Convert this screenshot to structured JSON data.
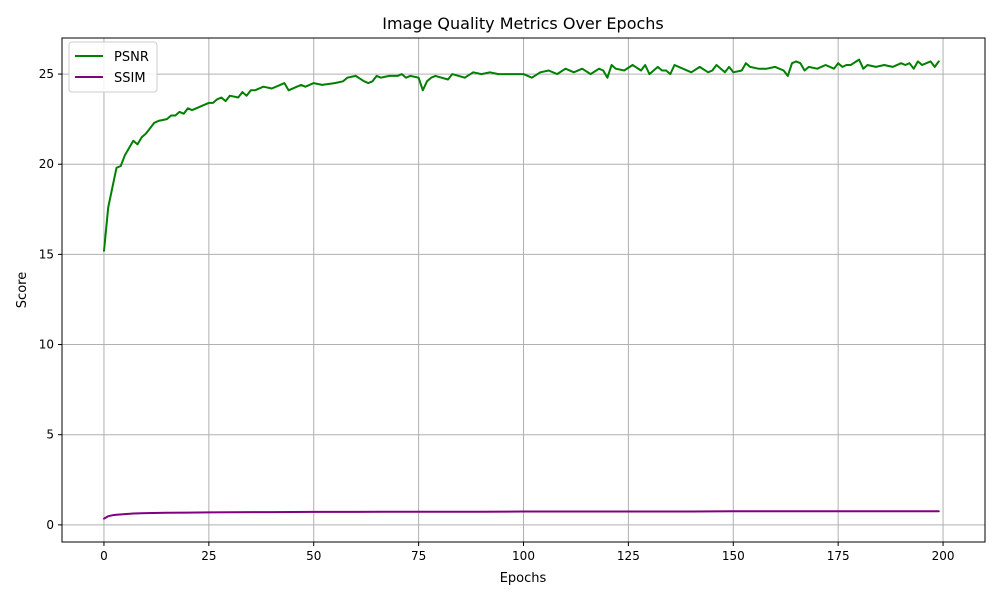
{
  "chart_data": {
    "type": "line",
    "title": "Image Quality Metrics Over Epochs",
    "xlabel": "Epochs",
    "ylabel": "Score",
    "xlim": [
      -10,
      210
    ],
    "ylim": [
      -0.95,
      27.0
    ],
    "xticks": [
      0,
      25,
      50,
      75,
      100,
      125,
      150,
      175,
      200
    ],
    "yticks": [
      0,
      5,
      10,
      15,
      20,
      25
    ],
    "grid": true,
    "legend_position": "top-left",
    "series": [
      {
        "name": "PSNR",
        "color": "#008000",
        "x": [
          0,
          1,
          3,
          4,
          5,
          6,
          7,
          8,
          9,
          10,
          12,
          13,
          15,
          16,
          17,
          18,
          19,
          20,
          21,
          22,
          24,
          25,
          26,
          27,
          28,
          29,
          30,
          32,
          33,
          34,
          35,
          36,
          38,
          40,
          42,
          43,
          44,
          46,
          47,
          48,
          49,
          50,
          52,
          55,
          57,
          58,
          60,
          62,
          63,
          64,
          65,
          66,
          68,
          70,
          71,
          72,
          73,
          75,
          76,
          77,
          78,
          79,
          82,
          83,
          86,
          88,
          90,
          92,
          94,
          96,
          100,
          102,
          104,
          106,
          108,
          110,
          112,
          114,
          116,
          118,
          119,
          120,
          121,
          122,
          124,
          126,
          128,
          129,
          130,
          132,
          133,
          134,
          135,
          136,
          138,
          140,
          142,
          144,
          145,
          146,
          148,
          149,
          150,
          152,
          153,
          154,
          156,
          158,
          160,
          162,
          163,
          164,
          165,
          166,
          167,
          168,
          170,
          172,
          174,
          175,
          176,
          177,
          178,
          180,
          181,
          182,
          184,
          186,
          188,
          190,
          191,
          192,
          193,
          194,
          195,
          196,
          197,
          198,
          199
        ],
        "values": [
          15.2,
          17.6,
          19.8,
          19.9,
          20.5,
          20.9,
          21.3,
          21.1,
          21.5,
          21.7,
          22.3,
          22.4,
          22.5,
          22.7,
          22.7,
          22.9,
          22.8,
          23.1,
          23.0,
          23.1,
          23.3,
          23.4,
          23.4,
          23.6,
          23.7,
          23.5,
          23.8,
          23.7,
          24.0,
          23.8,
          24.1,
          24.1,
          24.3,
          24.2,
          24.4,
          24.5,
          24.1,
          24.3,
          24.4,
          24.3,
          24.4,
          24.5,
          24.4,
          24.5,
          24.6,
          24.8,
          24.9,
          24.6,
          24.5,
          24.6,
          24.9,
          24.8,
          24.9,
          24.9,
          25.0,
          24.8,
          24.9,
          24.8,
          24.1,
          24.6,
          24.8,
          24.9,
          24.7,
          25.0,
          24.8,
          25.1,
          25.0,
          25.1,
          25.0,
          25.0,
          25.0,
          24.8,
          25.1,
          25.2,
          25.0,
          25.3,
          25.1,
          25.3,
          25.0,
          25.3,
          25.2,
          24.8,
          25.5,
          25.3,
          25.2,
          25.5,
          25.2,
          25.5,
          25.0,
          25.4,
          25.2,
          25.2,
          25.0,
          25.5,
          25.3,
          25.1,
          25.4,
          25.1,
          25.2,
          25.5,
          25.1,
          25.4,
          25.1,
          25.2,
          25.6,
          25.4,
          25.3,
          25.3,
          25.4,
          25.2,
          24.9,
          25.6,
          25.7,
          25.6,
          25.2,
          25.4,
          25.3,
          25.5,
          25.3,
          25.6,
          25.4,
          25.5,
          25.5,
          25.8,
          25.3,
          25.5,
          25.4,
          25.5,
          25.4,
          25.6,
          25.5,
          25.6,
          25.3,
          25.7,
          25.5,
          25.6,
          25.7,
          25.4,
          25.7
        ]
      },
      {
        "name": "SSIM",
        "color": "#800080",
        "x": [
          0,
          1,
          2,
          3,
          5,
          7,
          10,
          15,
          20,
          25,
          30,
          40,
          50,
          60,
          70,
          80,
          90,
          100,
          110,
          120,
          130,
          140,
          150,
          160,
          170,
          180,
          190,
          199
        ],
        "values": [
          0.35,
          0.48,
          0.53,
          0.56,
          0.6,
          0.63,
          0.65,
          0.67,
          0.68,
          0.69,
          0.7,
          0.71,
          0.72,
          0.72,
          0.73,
          0.73,
          0.73,
          0.74,
          0.74,
          0.74,
          0.74,
          0.74,
          0.75,
          0.75,
          0.75,
          0.75,
          0.75,
          0.75
        ]
      }
    ]
  }
}
